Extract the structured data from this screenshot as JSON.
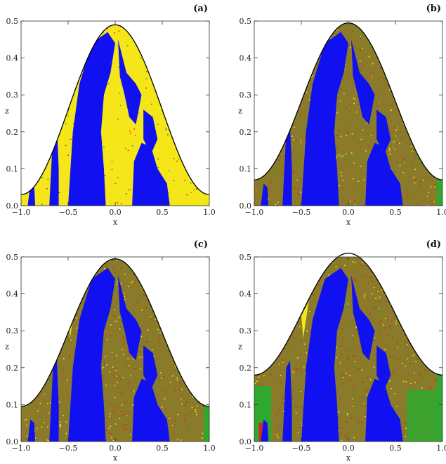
{
  "colors": {
    "regular": "#1010f0",
    "escape_primary": "#f5e61a",
    "chaotic_mix": "#8a7a2a",
    "red": "#e22020",
    "green": "#2ea82e",
    "curve": "#000000"
  },
  "chart_data": [
    {
      "type": "heatmap",
      "label": "(a)",
      "xlabel": "x",
      "ylabel": "z",
      "xlim": [
        -1.0,
        1.0
      ],
      "ylim": [
        0.0,
        0.5
      ],
      "xticks": [
        "−1.0",
        "−0.5",
        "0.0",
        "0.5",
        "1.0"
      ],
      "yticks": [
        "0.0",
        "0.1",
        "0.2",
        "0.3",
        "0.4",
        "0.5"
      ],
      "ytick_values": [
        0.0,
        0.1,
        0.2,
        0.3,
        0.4,
        0.5
      ],
      "boundary": {
        "peak": 0.49,
        "edge": 0.03
      },
      "background": "yellow"
    },
    {
      "type": "heatmap",
      "label": "(b)",
      "xlabel": "x",
      "ylabel": "z",
      "xlim": [
        -1.0,
        1.0
      ],
      "ylim": [
        0.0,
        0.5
      ],
      "xticks": [
        "−1.0",
        "−0.5",
        "0.0",
        "0.5",
        "1.0"
      ],
      "yticks": [
        "0.0",
        "0.1",
        "0.2",
        "0.3",
        "0.4",
        "0.5"
      ],
      "ytick_values": [
        0.0,
        0.1,
        0.2,
        0.3,
        0.4,
        0.5
      ],
      "boundary": {
        "peak": 0.495,
        "edge": 0.07
      },
      "background": "mixed"
    },
    {
      "type": "heatmap",
      "label": "(c)",
      "xlabel": "x",
      "ylabel": "z",
      "xlim": [
        -1.0,
        1.0
      ],
      "ylim": [
        0.0,
        0.5
      ],
      "xticks": [
        "−1.0",
        "−0.5",
        "0.0",
        "0.5",
        "1.0"
      ],
      "yticks": [
        "0.0",
        "0.1",
        "0.2",
        "0.3",
        "0.4",
        "0.5"
      ],
      "ytick_values": [
        0.0,
        0.1,
        0.2,
        0.3,
        0.4,
        0.5
      ],
      "boundary": {
        "peak": 0.495,
        "edge": 0.095
      },
      "background": "mixed"
    },
    {
      "type": "heatmap",
      "label": "(d)",
      "xlabel": "x",
      "ylabel": "z",
      "xlim": [
        -1.0,
        1.0
      ],
      "ylim": [
        0.0,
        0.5
      ],
      "xticks": [
        "−1.0",
        "−0.5",
        "0.0",
        "0.5",
        "1.0"
      ],
      "yticks": [
        "0.0",
        "0.1",
        "0.2",
        "0.3",
        "0.4",
        "0.5"
      ],
      "ytick_values": [
        0.0,
        0.1,
        0.2,
        0.3,
        0.4,
        0.5
      ],
      "boundary": {
        "peak": 0.51,
        "edge": 0.18
      },
      "background": "mixed-green"
    }
  ]
}
